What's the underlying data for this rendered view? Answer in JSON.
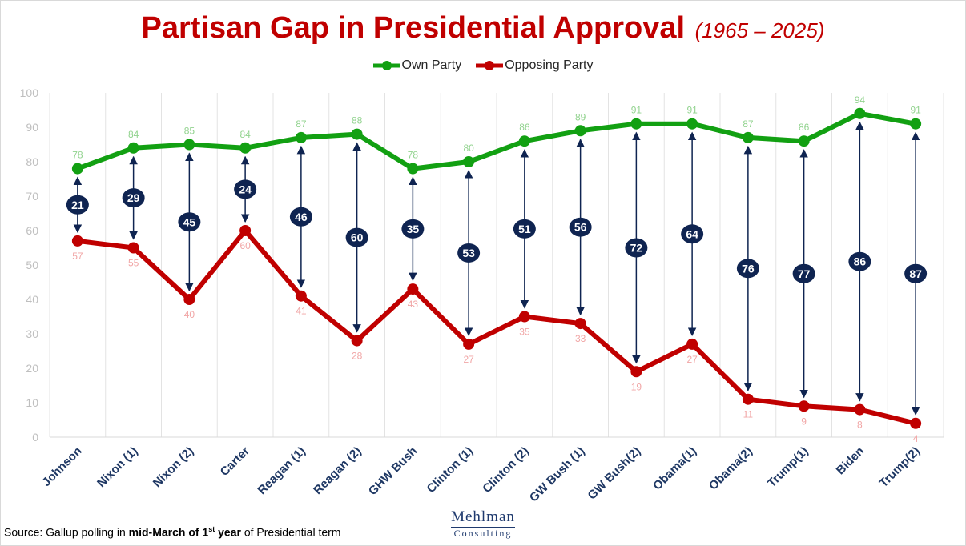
{
  "title": "Partisan Gap in Presidential Approval",
  "subtitle": "(1965 – 2025)",
  "source": {
    "prefix": "Source: Gallup polling in ",
    "bold1": "mid-March of 1",
    "sup": "st",
    "bold2": " year",
    "suffix": " of Presidential term"
  },
  "logo": {
    "line1": "Mehlman",
    "line2": "Consulting"
  },
  "colors": {
    "own": "#12a012",
    "opposing": "#c00000",
    "gap": "#0f2451",
    "own_label": "#92d38f",
    "opp_label": "#f1a6a6",
    "axis_text": "#bfbfbf",
    "category_text": "#1f3864"
  },
  "chart_data": {
    "type": "line",
    "categories": [
      "Johnson",
      "Nixon (1)",
      "Nixon (2)",
      "Carter",
      "Reagan (1)",
      "Reagan (2)",
      "GHW Bush",
      "Clinton (1)",
      "Clinton (2)",
      "GW Bush (1)",
      "GW Bush(2)",
      "Obama(1)",
      "Obama(2)",
      "Trump(1)",
      "Biden",
      "Trump(2)"
    ],
    "series": [
      {
        "name": "Own Party",
        "values": [
          78,
          84,
          85,
          84,
          87,
          88,
          78,
          80,
          86,
          89,
          91,
          91,
          87,
          86,
          94,
          91
        ]
      },
      {
        "name": "Opposing Party",
        "values": [
          57,
          55,
          40,
          60,
          41,
          28,
          43,
          27,
          35,
          33,
          19,
          27,
          11,
          9,
          8,
          4
        ]
      }
    ],
    "gaps": [
      21,
      29,
      45,
      24,
      46,
      60,
      35,
      53,
      51,
      56,
      72,
      64,
      76,
      77,
      86,
      87
    ],
    "y_ticks": [
      "0",
      "10",
      "20",
      "30",
      "40",
      "50",
      "60",
      "70",
      "80",
      "90",
      "100"
    ],
    "ylim": [
      0,
      100
    ],
    "grid": "vertical",
    "legend_position": "top-center"
  }
}
